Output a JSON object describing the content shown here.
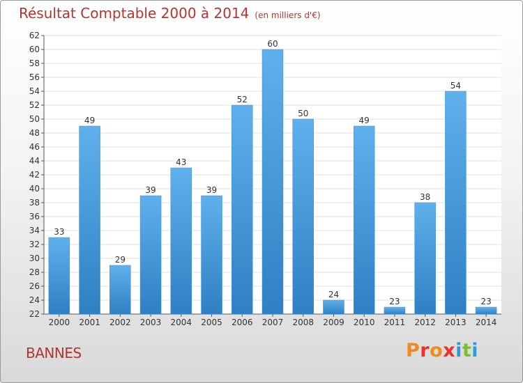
{
  "header": {
    "title": "Résultat Comptable 2000 à 2014",
    "unit": "(en milliers d'€)"
  },
  "footer": {
    "commune": "BANNES",
    "logo": "Proxiti"
  },
  "colors": {
    "title": "#b5342d",
    "bar_top": "#5fb0ec",
    "bar_bottom": "#2f80c3",
    "grid": "#e2e2e2"
  },
  "chart_data": {
    "type": "bar",
    "title": "Résultat Comptable 2000 à 2014",
    "subtitle": "(en milliers d'€)",
    "xlabel": "",
    "ylabel": "",
    "categories": [
      "2000",
      "2001",
      "2002",
      "2003",
      "2004",
      "2005",
      "2006",
      "2007",
      "2008",
      "2009",
      "2010",
      "2011",
      "2012",
      "2013",
      "2014"
    ],
    "values": [
      33,
      49,
      29,
      39,
      43,
      39,
      52,
      60,
      50,
      24,
      49,
      23,
      38,
      54,
      23
    ],
    "ylim": [
      22,
      62
    ],
    "yticks": [
      22,
      24,
      26,
      28,
      30,
      32,
      34,
      36,
      38,
      40,
      42,
      44,
      46,
      48,
      50,
      52,
      54,
      56,
      58,
      60,
      62
    ],
    "grid": true,
    "legend": "none"
  }
}
